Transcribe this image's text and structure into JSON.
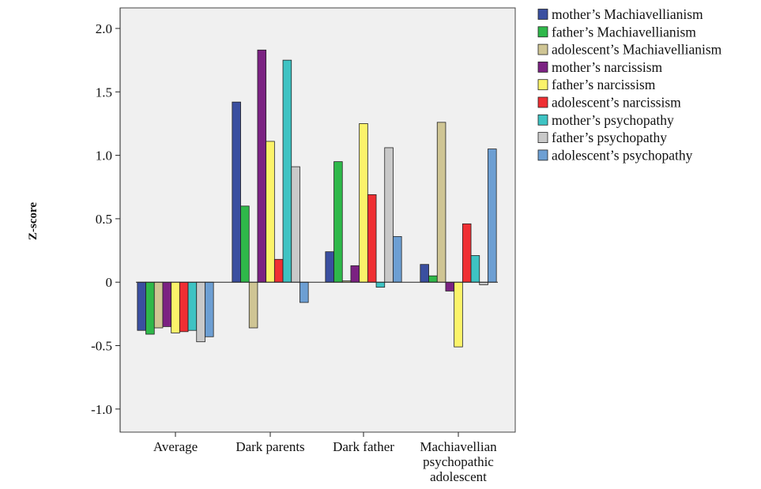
{
  "chart_data": {
    "type": "bar",
    "title": "",
    "xlabel": "",
    "ylabel": "Z-score",
    "ylim": [
      -1.2,
      2.2
    ],
    "yticks": [
      -1.0,
      -0.5,
      0,
      0.5,
      1.0,
      1.5,
      2.0
    ],
    "ytick_labels": [
      "-1.0",
      "-0.5",
      "0",
      "0.5",
      "1.0",
      "1.5",
      "2.0"
    ],
    "grid": false,
    "legend_position": "right",
    "categories": [
      [
        "Average"
      ],
      [
        "Dark parents"
      ],
      [
        "Dark father"
      ],
      [
        "Machiavellian",
        "psychopathic",
        "adolescent"
      ]
    ],
    "series": [
      {
        "name": "mother’s Machiavellianism",
        "color": "#3a4fa0",
        "values": [
          -0.38,
          1.42,
          0.24,
          0.14
        ]
      },
      {
        "name": "father’s Machiavellianism",
        "color": "#2fb84a",
        "values": [
          -0.41,
          0.6,
          0.95,
          0.05
        ]
      },
      {
        "name": "adolescent’s Machiavellianism",
        "color": "#cfc594",
        "values": [
          -0.36,
          -0.36,
          0.01,
          1.26
        ]
      },
      {
        "name": "mother’s narcissism",
        "color": "#7b2282",
        "values": [
          -0.35,
          1.83,
          0.13,
          -0.07
        ]
      },
      {
        "name": "father’s narcissism",
        "color": "#fbf36a",
        "values": [
          -0.4,
          1.11,
          1.25,
          -0.51
        ]
      },
      {
        "name": "adolescent’s narcissism",
        "color": "#ef2f33",
        "values": [
          -0.39,
          0.18,
          0.69,
          0.46
        ]
      },
      {
        "name": "mother’s psychopathy",
        "color": "#3ec3c3",
        "values": [
          -0.38,
          1.75,
          -0.04,
          0.21
        ]
      },
      {
        "name": "father’s psychopathy",
        "color": "#c9c9c9",
        "values": [
          -0.47,
          0.91,
          1.06,
          -0.02
        ]
      },
      {
        "name": "adolescent’s psychopathy",
        "color": "#6d9fd3",
        "values": [
          -0.43,
          -0.16,
          0.36,
          1.05
        ]
      }
    ],
    "plot_background": "#f0f0f0"
  }
}
